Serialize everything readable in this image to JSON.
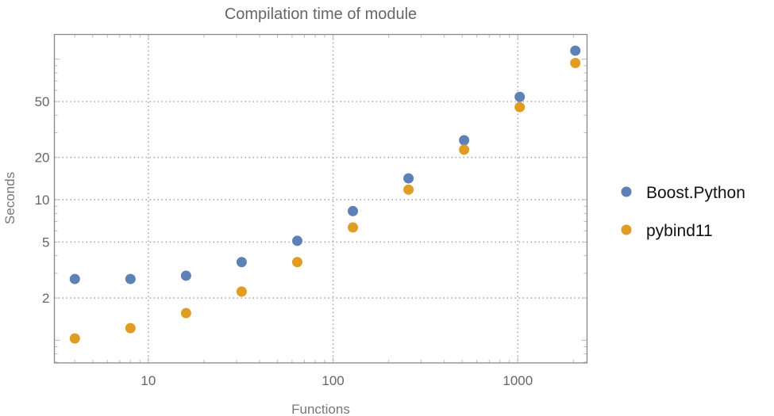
{
  "chart_data": {
    "type": "scatter",
    "title": "Compilation time of module",
    "xlabel": "Functions",
    "ylabel": "Seconds",
    "xscale": "log",
    "yscale": "log",
    "xlim": [
      3.1,
      2370
    ],
    "ylim": [
      0.69,
      150
    ],
    "xticks": [
      10,
      100,
      1000
    ],
    "xtick_labels": [
      "10",
      "100",
      "1000"
    ],
    "yticks": [
      2,
      5,
      10,
      20,
      50
    ],
    "ytick_labels": [
      "2",
      "5",
      "10",
      "20",
      "50"
    ],
    "grid": true,
    "legend_position": "right",
    "x": [
      4,
      8,
      16,
      32,
      64,
      128,
      256,
      512,
      1024,
      2048
    ],
    "series": [
      {
        "name": "Boost.Python",
        "color": "#5e81b5",
        "values": [
          2.73,
          2.73,
          2.88,
          3.6,
          5.1,
          8.3,
          14.2,
          26.5,
          54,
          115
        ]
      },
      {
        "name": "pybind11",
        "color": "#e19c24",
        "values": [
          1.03,
          1.22,
          1.56,
          2.22,
          3.6,
          6.35,
          11.8,
          22.7,
          45.6,
          94
        ]
      }
    ]
  }
}
